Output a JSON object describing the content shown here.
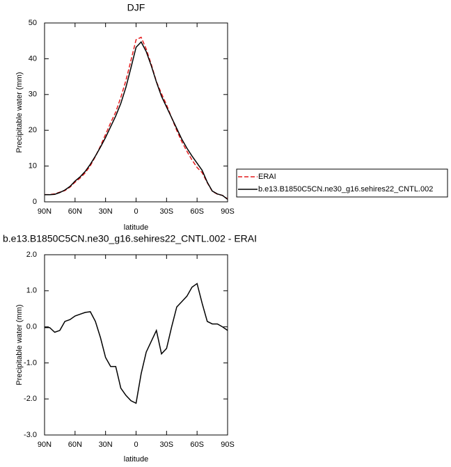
{
  "chart_data": [
    {
      "type": "line",
      "title": "DJF",
      "x_label": "latitude",
      "y_label": "Precipitable water (mm)",
      "x": [
        90,
        85,
        80,
        75,
        70,
        65,
        60,
        55,
        50,
        45,
        40,
        35,
        30,
        25,
        20,
        15,
        10,
        5,
        0,
        -5,
        -10,
        -15,
        -20,
        -25,
        -30,
        -35,
        -40,
        -45,
        -50,
        -55,
        -60,
        -65,
        -70,
        -75,
        -80,
        -85,
        -90
      ],
      "series": [
        {
          "name": "ERAI",
          "color": "#e41a1c",
          "line_style": "dashed",
          "values": [
            2.02,
            2.02,
            2.25,
            2.7,
            3.15,
            4.1,
            5.5,
            6.65,
            8.1,
            10.08,
            12.65,
            15.6,
            18.85,
            22.1,
            25.1,
            29.2,
            33.9,
            39.55,
            45.32,
            46.0,
            42.7,
            38.4,
            33.6,
            30.25,
            27.1,
            23.5,
            19.95,
            16.8,
            14.15,
            11.7,
            9.6,
            8.15,
            5.35,
            2.92,
            2.12,
            1.8,
            0.8
          ]
        },
        {
          "name": "b.e13.B1850C5CN.ne30_g16.sehires22_CNTL.002",
          "color": "#000000",
          "line_style": "solid",
          "values": [
            2.0,
            2.0,
            2.1,
            2.6,
            3.3,
            4.3,
            5.8,
            7.0,
            8.5,
            10.5,
            12.8,
            15.3,
            18.0,
            21.0,
            24.0,
            27.5,
            32.0,
            37.5,
            43.2,
            44.7,
            42.0,
            38.0,
            33.5,
            29.5,
            26.5,
            23.5,
            20.5,
            17.5,
            15.0,
            12.8,
            10.8,
            8.8,
            5.5,
            3.0,
            2.2,
            1.8,
            0.7
          ]
        }
      ],
      "xlim": [
        90,
        -90
      ],
      "xticks": [
        {
          "value": 90,
          "label": "90N"
        },
        {
          "value": 60,
          "label": "60N"
        },
        {
          "value": 30,
          "label": "30N"
        },
        0,
        {
          "value": -30,
          "label": "30S"
        },
        {
          "value": -60,
          "label": "60S"
        },
        {
          "value": -90,
          "label": "90S"
        }
      ],
      "ylim": [
        0,
        50
      ],
      "yticks": [
        0,
        10,
        20,
        30,
        40,
        50
      ],
      "legend": "outside-right"
    },
    {
      "type": "line",
      "title": "b.e13.B1850C5CN.ne30_g16.sehires22_CNTL.002 - ERAI",
      "x_label": "latitude",
      "y_label": "Precipitable water (mm)",
      "x": [
        90,
        85,
        80,
        75,
        70,
        65,
        60,
        55,
        50,
        45,
        40,
        35,
        30,
        25,
        20,
        15,
        10,
        5,
        0,
        -5,
        -10,
        -15,
        -20,
        -25,
        -30,
        -35,
        -40,
        -45,
        -50,
        -55,
        -60,
        -65,
        -70,
        -75,
        -80,
        -85,
        -90
      ],
      "values": [
        -0.02,
        -0.02,
        -0.15,
        -0.1,
        0.15,
        0.2,
        0.3,
        0.35,
        0.4,
        0.42,
        0.15,
        -0.3,
        -0.85,
        -1.1,
        -1.1,
        -1.7,
        -1.9,
        -2.05,
        -2.12,
        -1.3,
        -0.7,
        -0.4,
        -0.1,
        -0.75,
        -0.6,
        0.0,
        0.55,
        0.7,
        0.85,
        1.1,
        1.2,
        0.65,
        0.15,
        0.08,
        0.08,
        0.0,
        -0.1
      ],
      "color": "#000000",
      "xlim": [
        90,
        -90
      ],
      "xticks": [
        {
          "value": 90,
          "label": "90N"
        },
        {
          "value": 60,
          "label": "60N"
        },
        {
          "value": 30,
          "label": "30N"
        },
        0,
        {
          "value": -30,
          "label": "30S"
        },
        {
          "value": -60,
          "label": "60S"
        },
        {
          "value": -90,
          "label": "90S"
        }
      ],
      "ylim": [
        -3,
        2
      ],
      "yticks": [
        {
          "value": -3,
          "label": "-3.0"
        },
        {
          "value": -2,
          "label": "-2.0"
        },
        {
          "value": -1,
          "label": "-1.0"
        },
        {
          "value": 0,
          "label": "0.0"
        },
        {
          "value": 1,
          "label": "1.0"
        },
        {
          "value": 2,
          "label": "2.0"
        }
      ]
    }
  ]
}
